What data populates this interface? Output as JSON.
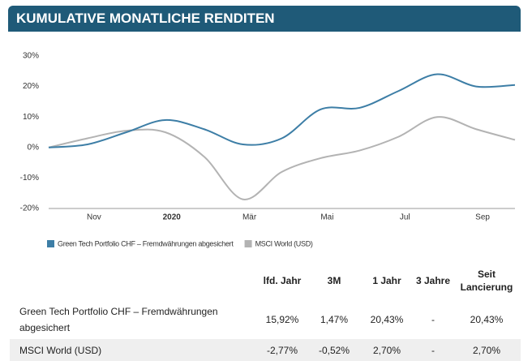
{
  "header": {
    "title": "KUMULATIVE MONATLICHE RENDITEN"
  },
  "chart_data": {
    "type": "line",
    "categories": [
      null,
      "Nov",
      null,
      "2020",
      null,
      "Mär",
      null,
      "Mai",
      null,
      "Jul",
      null,
      "Sep",
      null
    ],
    "series": [
      {
        "name": "Green Tech Portfolio CHF – Fremdwährungen abgesichert",
        "color": "#3d7ea6",
        "values": [
          0,
          1,
          5,
          9,
          6,
          1,
          3,
          12.5,
          13,
          18.5,
          24,
          20,
          20.5
        ]
      },
      {
        "name": "MSCI World (USD)",
        "color": "#b3b3b3",
        "values": [
          0,
          3,
          5.5,
          5,
          -3,
          -17,
          -8,
          -3.5,
          -1,
          3.5,
          10,
          6,
          2.5
        ]
      }
    ],
    "ylim": [
      -20,
      30
    ],
    "yticks": [
      {
        "value": -20,
        "label": "-20%"
      },
      {
        "value": -10,
        "label": "-10%"
      },
      {
        "value": 0,
        "label": "0%"
      },
      {
        "value": 10,
        "label": "10%"
      },
      {
        "value": 20,
        "label": "20%"
      },
      {
        "value": 30,
        "label": "30%"
      }
    ],
    "legend": "bottom-left"
  },
  "table": {
    "header": [
      "lfd. Jahr",
      "3M",
      "1 Jahr",
      "3 Jahre",
      "Seit Lancierung"
    ],
    "rows": [
      [
        "Green Tech Portfolio CHF – Fremdwährungen abgesichert",
        "15,92%",
        "1,47%",
        "20,43%",
        "-",
        "20,43%"
      ],
      [
        "MSCI World (USD)",
        "-2,77%",
        "-0,52%",
        "2,70%",
        "-",
        "2,70%"
      ]
    ]
  }
}
